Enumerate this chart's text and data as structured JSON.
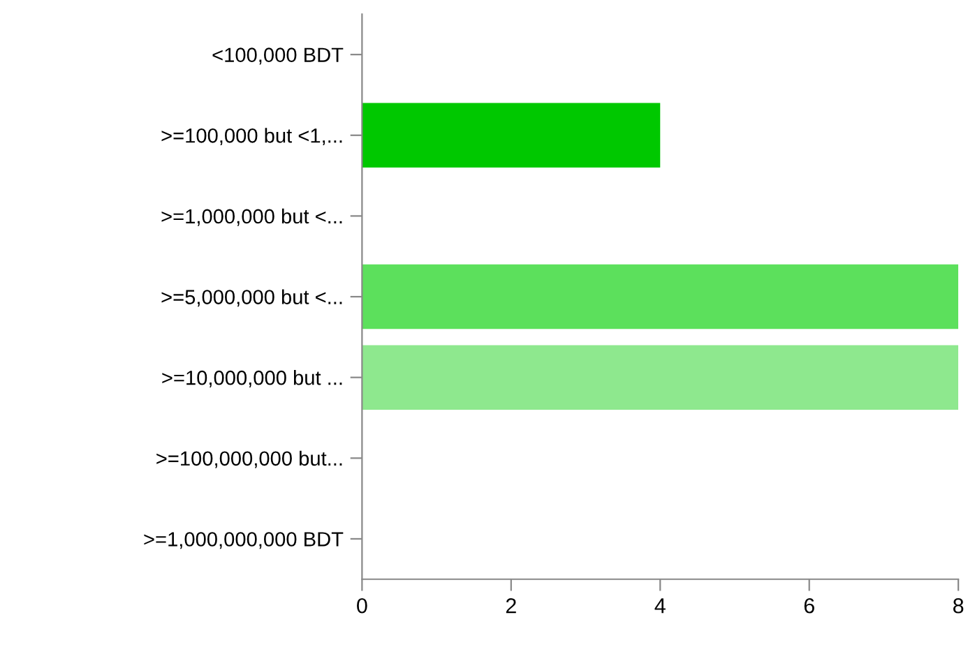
{
  "chart_data": {
    "type": "bar",
    "orientation": "horizontal",
    "categories": [
      "<100,000 BDT",
      ">=100,000 but <1,...",
      ">=1,000,000 but <...",
      ">=5,000,000 but <...",
      ">=10,000,000 but ...",
      ">=100,000,000 but...",
      ">=1,000,000,000 BDT"
    ],
    "values": [
      0,
      4,
      0,
      8,
      8,
      0,
      0
    ],
    "colors": [
      "#00c800",
      "#00c800",
      "#2fd42f",
      "#5ce05c",
      "#8ee88e",
      "#b4f0b4",
      "#d4f7d4"
    ],
    "xlim": [
      0,
      8
    ],
    "xticks": [
      0,
      2,
      4,
      6,
      8
    ],
    "grid": false,
    "legend": false
  }
}
